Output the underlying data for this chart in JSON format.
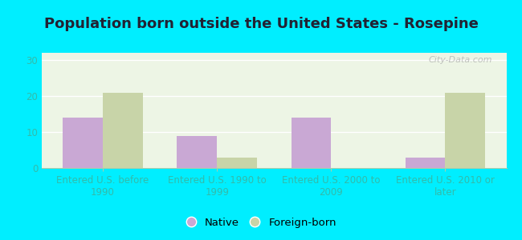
{
  "title": "Population born outside the United States - Rosepine",
  "categories": [
    "Entered U.S. before\n1990",
    "Entered U.S. 1990 to\n1999",
    "Entered U.S. 2000 to\n2009",
    "Entered U.S. 2010 or\nlater"
  ],
  "native_values": [
    14,
    9,
    14,
    3
  ],
  "foreign_values": [
    21,
    3,
    0,
    21
  ],
  "native_color": "#c9a8d4",
  "foreign_color": "#c8d4a8",
  "ylim": [
    0,
    32
  ],
  "yticks": [
    0,
    10,
    20,
    30
  ],
  "bar_width": 0.35,
  "background_outer": "#00eeff",
  "background_inner": "#edf5e5",
  "title_fontsize": 13,
  "tick_label_fontsize": 8.5,
  "legend_fontsize": 9.5,
  "tick_color": "#33bbaa",
  "title_color": "#222233",
  "watermark": "City-Data.com"
}
